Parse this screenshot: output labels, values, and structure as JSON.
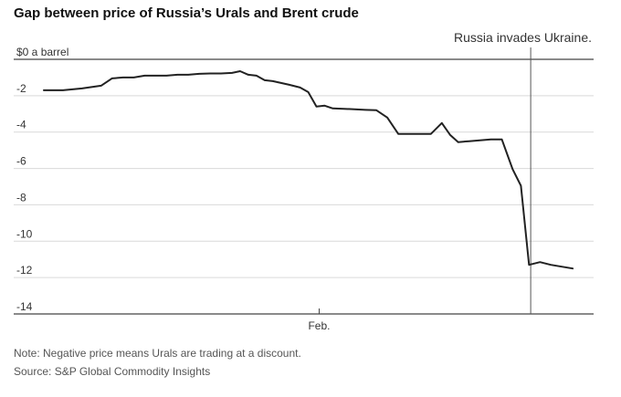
{
  "title": "Gap between price of Russia’s Urals and Brent crude",
  "chart_data": {
    "type": "line",
    "ylim": [
      -14,
      0
    ],
    "yticks": [
      0,
      -2,
      -4,
      -6,
      -8,
      -10,
      -12,
      -14
    ],
    "ytick_labels": [
      "$0 a barrel",
      "-2",
      "-4",
      "-6",
      "-8",
      "-10",
      "-12",
      "-14"
    ],
    "x_range": [
      0,
      100
    ],
    "xtick": {
      "x": 50.5,
      "label": "Feb."
    },
    "grid": true,
    "series": [
      {
        "values": [
          [
            0,
            -1.7
          ],
          [
            3.5,
            -1.7
          ],
          [
            7,
            -1.6
          ],
          [
            10.5,
            -1.45
          ],
          [
            12.5,
            -1.05
          ],
          [
            14.5,
            -1.0
          ],
          [
            16.5,
            -1.0
          ],
          [
            18.5,
            -0.9
          ],
          [
            20.5,
            -0.9
          ],
          [
            22.5,
            -0.9
          ],
          [
            24.5,
            -0.85
          ],
          [
            26.5,
            -0.85
          ],
          [
            28.5,
            -0.8
          ],
          [
            30.5,
            -0.78
          ],
          [
            32.5,
            -0.78
          ],
          [
            34.5,
            -0.75
          ],
          [
            36,
            -0.65
          ],
          [
            37.5,
            -0.85
          ],
          [
            39,
            -0.9
          ],
          [
            40.5,
            -1.15
          ],
          [
            42,
            -1.2
          ],
          [
            43.5,
            -1.3
          ],
          [
            45,
            -1.4
          ],
          [
            47,
            -1.55
          ],
          [
            48.5,
            -1.8
          ],
          [
            50,
            -2.6
          ],
          [
            51.5,
            -2.55
          ],
          [
            53,
            -2.7
          ],
          [
            55,
            -2.72
          ],
          [
            57,
            -2.75
          ],
          [
            59,
            -2.78
          ],
          [
            61,
            -2.8
          ],
          [
            63,
            -3.2
          ],
          [
            65,
            -4.1
          ],
          [
            67,
            -4.1
          ],
          [
            69,
            -4.1
          ],
          [
            71,
            -4.1
          ],
          [
            73,
            -3.5
          ],
          [
            74.5,
            -4.15
          ],
          [
            76,
            -4.55
          ],
          [
            78,
            -4.5
          ],
          [
            80,
            -4.45
          ],
          [
            82,
            -4.4
          ],
          [
            84,
            -4.4
          ],
          [
            86,
            -6.05
          ],
          [
            87.5,
            -6.95
          ],
          [
            89,
            -11.3
          ],
          [
            91,
            -11.15
          ],
          [
            93,
            -11.3
          ],
          [
            95,
            -11.4
          ],
          [
            97,
            -11.5
          ]
        ]
      }
    ],
    "event_marker": {
      "x": 89.3,
      "label": "Russia invades Ukraine."
    }
  },
  "notes": {
    "line1": "Note: Negative price means Urals are trading at a discount.",
    "line2": "Source: S&P Global Commodity Insights"
  },
  "colors": {
    "line": "#222222",
    "grid": "#d9d9d9",
    "axis": "#444444",
    "marker": "#555555"
  }
}
